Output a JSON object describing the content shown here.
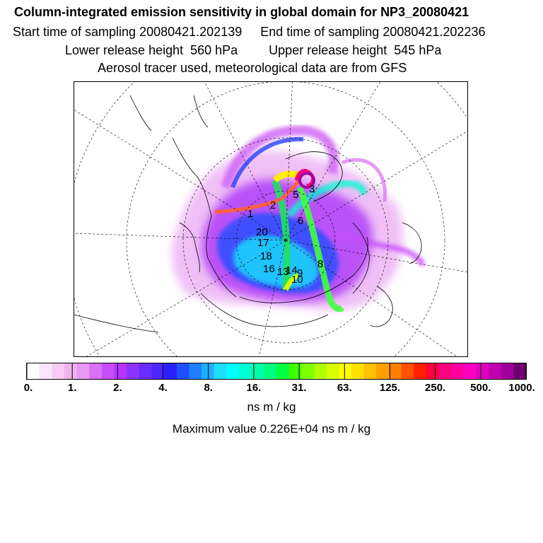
{
  "header": {
    "title": "Column-integrated emission sensitivity in global domain for NP3_20080421",
    "start_label": "Start time of sampling 20080421.202139",
    "end_label": "End time of sampling 20080421.202236",
    "lower_label": "Lower release height  560 hPa",
    "upper_label": "Upper release height  545 hPa",
    "info": "Aerosol tracer used, meteorological data are from GFS"
  },
  "map": {
    "projection": "north-polar-stereographic",
    "trajectory_labels": [
      "1",
      "2",
      "5",
      "3",
      "6",
      "20",
      "17",
      "18",
      "16",
      "14",
      "13",
      "9",
      "10",
      "8"
    ]
  },
  "colorbar": {
    "ticks": [
      "0.",
      "1.",
      "2.",
      "4.",
      "8.",
      "16.",
      "31.",
      "63.",
      "125.",
      "250.",
      "500.",
      "1000."
    ],
    "colors": [
      "#ffffff",
      "#fae6fa",
      "#f4ccf4",
      "#eeb3ee",
      "#e899f2",
      "#d970f5",
      "#c84df8",
      "#b833fb",
      "#8a33ff",
      "#6a2cff",
      "#4b26ff",
      "#2b1fff",
      "#1f4fff",
      "#1f7fff",
      "#1fafff",
      "#1fdfff",
      "#00ffff",
      "#00ffd5",
      "#00ffaa",
      "#00ff80",
      "#00ff40",
      "#40ff00",
      "#80ff00",
      "#b0ff00",
      "#d5ff00",
      "#ffff00",
      "#ffe000",
      "#ffc000",
      "#ffa000",
      "#ff7f00",
      "#ff5000",
      "#ff2000",
      "#ff0040",
      "#ff0080",
      "#ff00a0",
      "#ff00c0",
      "#e000c0",
      "#c000b0",
      "#a0009a",
      "#700070"
    ],
    "unit": "ns m / kg"
  },
  "footer": {
    "max_value": "Maximum value  0.226E+04 ns m / kg"
  }
}
